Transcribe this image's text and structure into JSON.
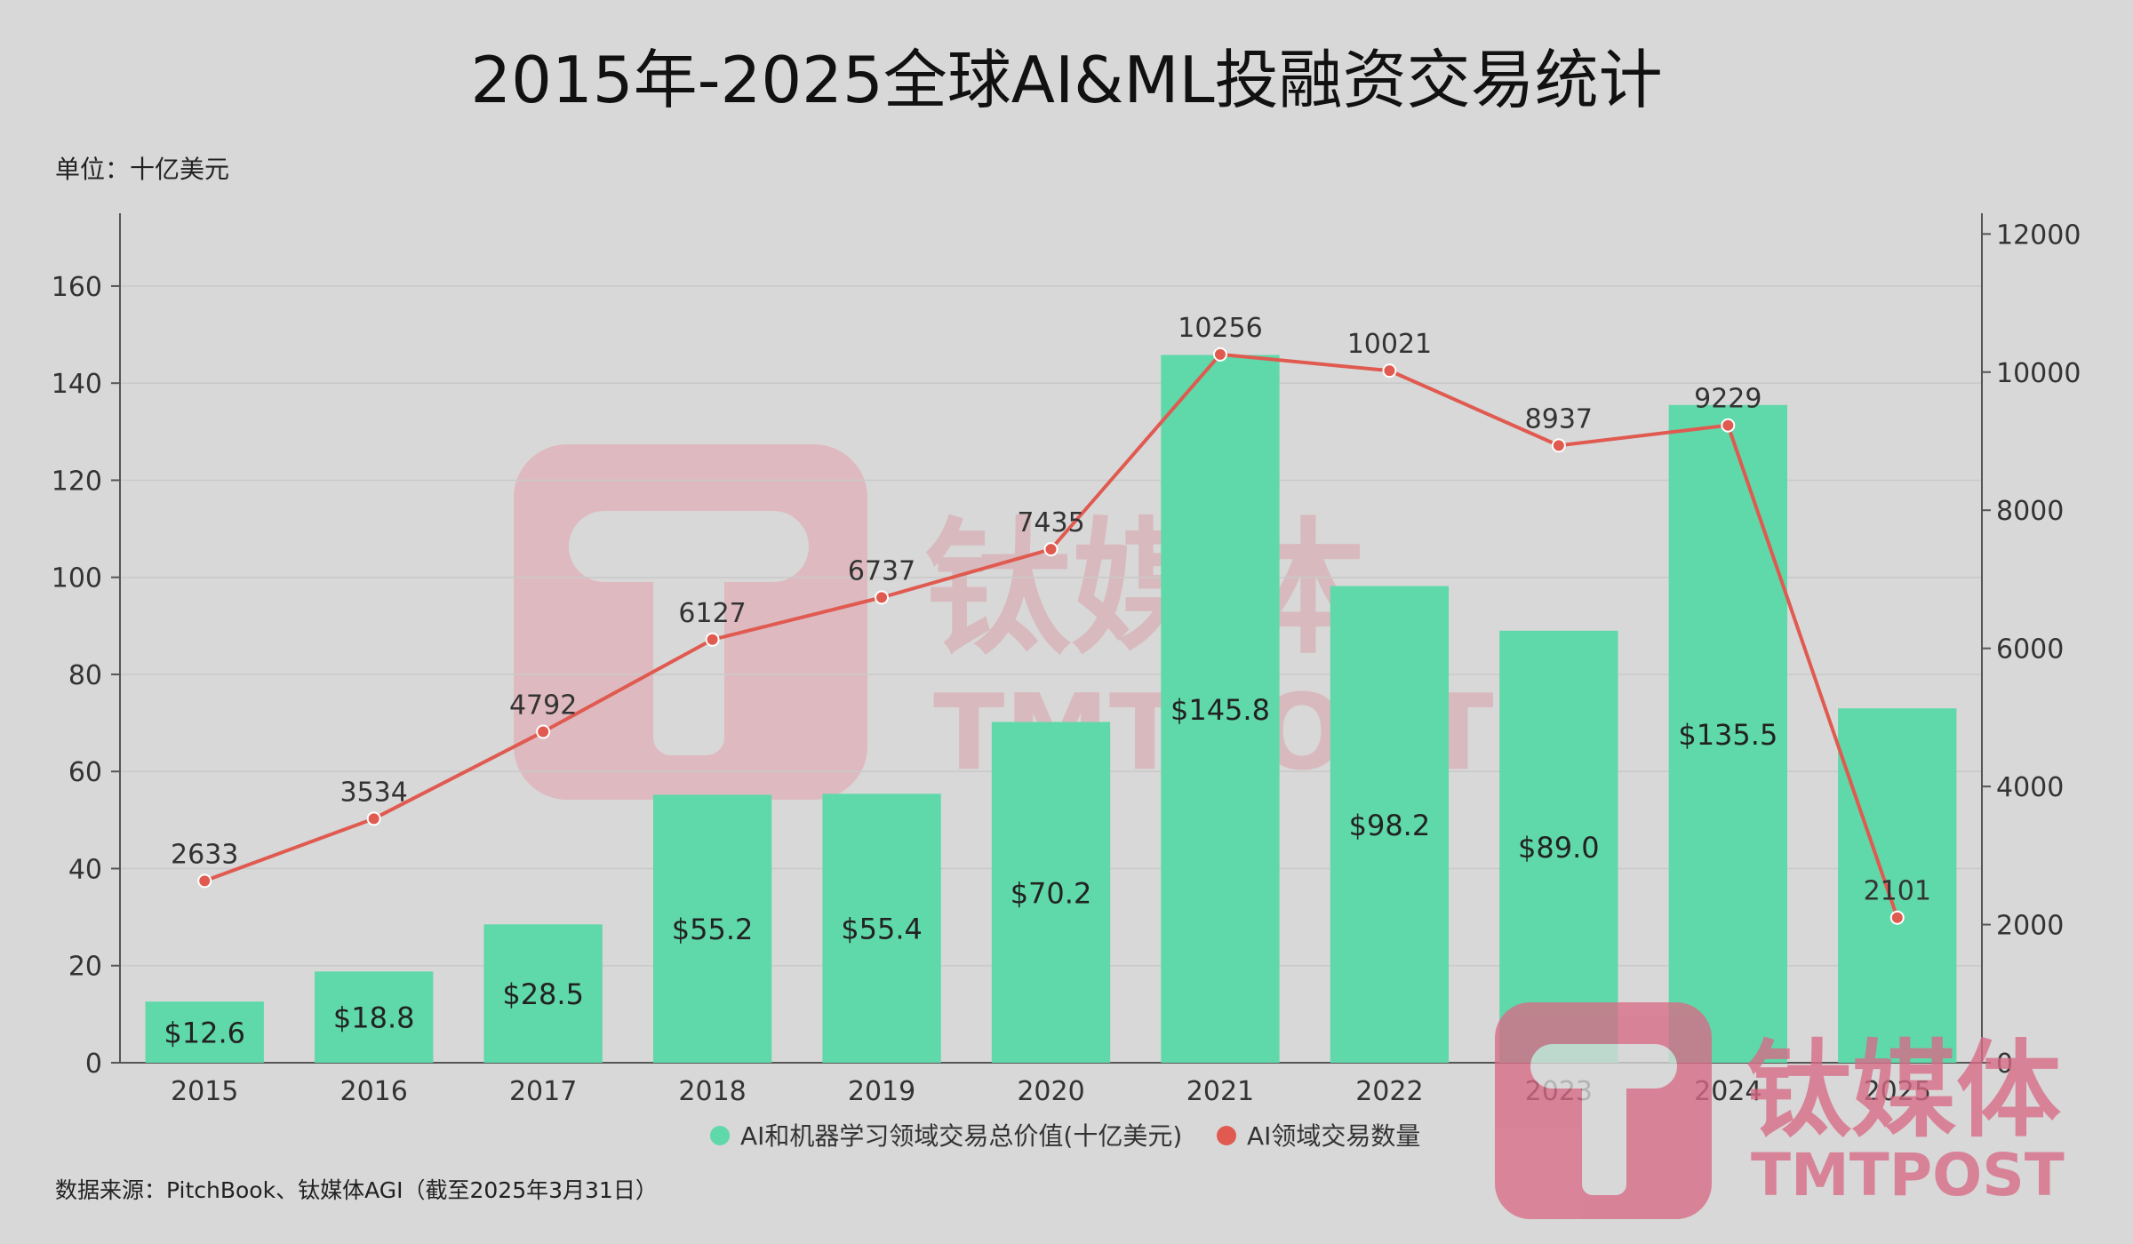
{
  "title": "2015年-2025全球AI&ML投融资交易统计",
  "unit_label": "单位：十亿美元",
  "source_note": "数据来源：PitchBook、钛媒体AGI（截至2025年3月31日）",
  "watermark": {
    "brand_cn": "钛媒体",
    "brand_en": "TMTPOST"
  },
  "colors": {
    "bar": "#5fd8aa",
    "line": "#e05a50",
    "background": "#d8d8d8",
    "watermark": "#d86b86"
  },
  "chart_data": {
    "type": "bar",
    "categories": [
      "2015",
      "2016",
      "2017",
      "2018",
      "2019",
      "2020",
      "2021",
      "2022",
      "2023",
      "2024",
      "2025"
    ],
    "series": [
      {
        "name": "AI和机器学习领域交易总价值(十亿美元)",
        "type": "bar",
        "axis": "left",
        "values": [
          12.6,
          18.8,
          28.5,
          55.2,
          55.4,
          70.2,
          145.8,
          98.2,
          89.0,
          135.5,
          73.0
        ],
        "labels": [
          "$12.6",
          "$18.8",
          "$28.5",
          "$55.2",
          "$55.4",
          "$70.2",
          "$145.8",
          "$98.2",
          "$89.0",
          "$135.5",
          ""
        ]
      },
      {
        "name": "AI领域交易数量",
        "type": "line",
        "axis": "right",
        "values": [
          2633,
          3534,
          4792,
          6127,
          6737,
          7435,
          10256,
          10021,
          8937,
          9229,
          2101
        ],
        "labels": [
          "2633",
          "3534",
          "4792",
          "6127",
          "6737",
          "7435",
          "10256",
          "10021",
          "8937",
          "9229",
          "2101"
        ]
      }
    ],
    "y_left": {
      "ticks": [
        0,
        20,
        40,
        60,
        80,
        100,
        120,
        140,
        160
      ],
      "range": [
        0,
        175
      ]
    },
    "y_right": {
      "ticks": [
        0,
        2000,
        4000,
        6000,
        8000,
        10000,
        12000
      ],
      "range": [
        0,
        12300
      ]
    },
    "grid": true,
    "legend": "bottom-center"
  }
}
